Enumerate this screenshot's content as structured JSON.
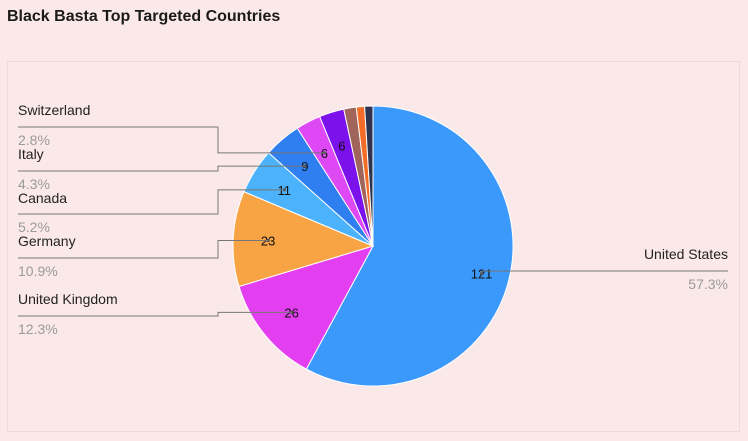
{
  "page": {
    "title": "Black Basta Top Targeted Countries"
  },
  "chart_data": {
    "type": "pie",
    "title": "Black Basta Top Targeted Countries",
    "slices": [
      {
        "label": "United States",
        "value": 121,
        "percent": "57.3%",
        "color": "#3b99fc",
        "show_value": true
      },
      {
        "label": "United Kingdom",
        "value": 26,
        "percent": "12.3%",
        "color": "#e33ff0",
        "show_value": true
      },
      {
        "label": "Germany",
        "value": 23,
        "percent": "10.9%",
        "color": "#f9a444",
        "show_value": true
      },
      {
        "label": "Canada",
        "value": 11,
        "percent": "5.2%",
        "color": "#4bb2fb",
        "show_value": true
      },
      {
        "label": "Italy",
        "value": 9,
        "percent": "4.3%",
        "color": "#2f7ff0",
        "show_value": true
      },
      {
        "label": "Switzerland",
        "value": 6,
        "percent": "2.8%",
        "color": "#df48f5",
        "show_value": true
      },
      {
        "label": "",
        "value": 6,
        "percent": "",
        "color": "#7b12ec",
        "show_value": true
      },
      {
        "label": "",
        "value": 3,
        "percent": "",
        "color": "#a0645a",
        "show_value": false
      },
      {
        "label": "",
        "value": 2,
        "percent": "",
        "color": "#f36d28",
        "show_value": false
      },
      {
        "label": "",
        "value": 2,
        "percent": "",
        "color": "#2e3350",
        "show_value": false
      }
    ]
  }
}
